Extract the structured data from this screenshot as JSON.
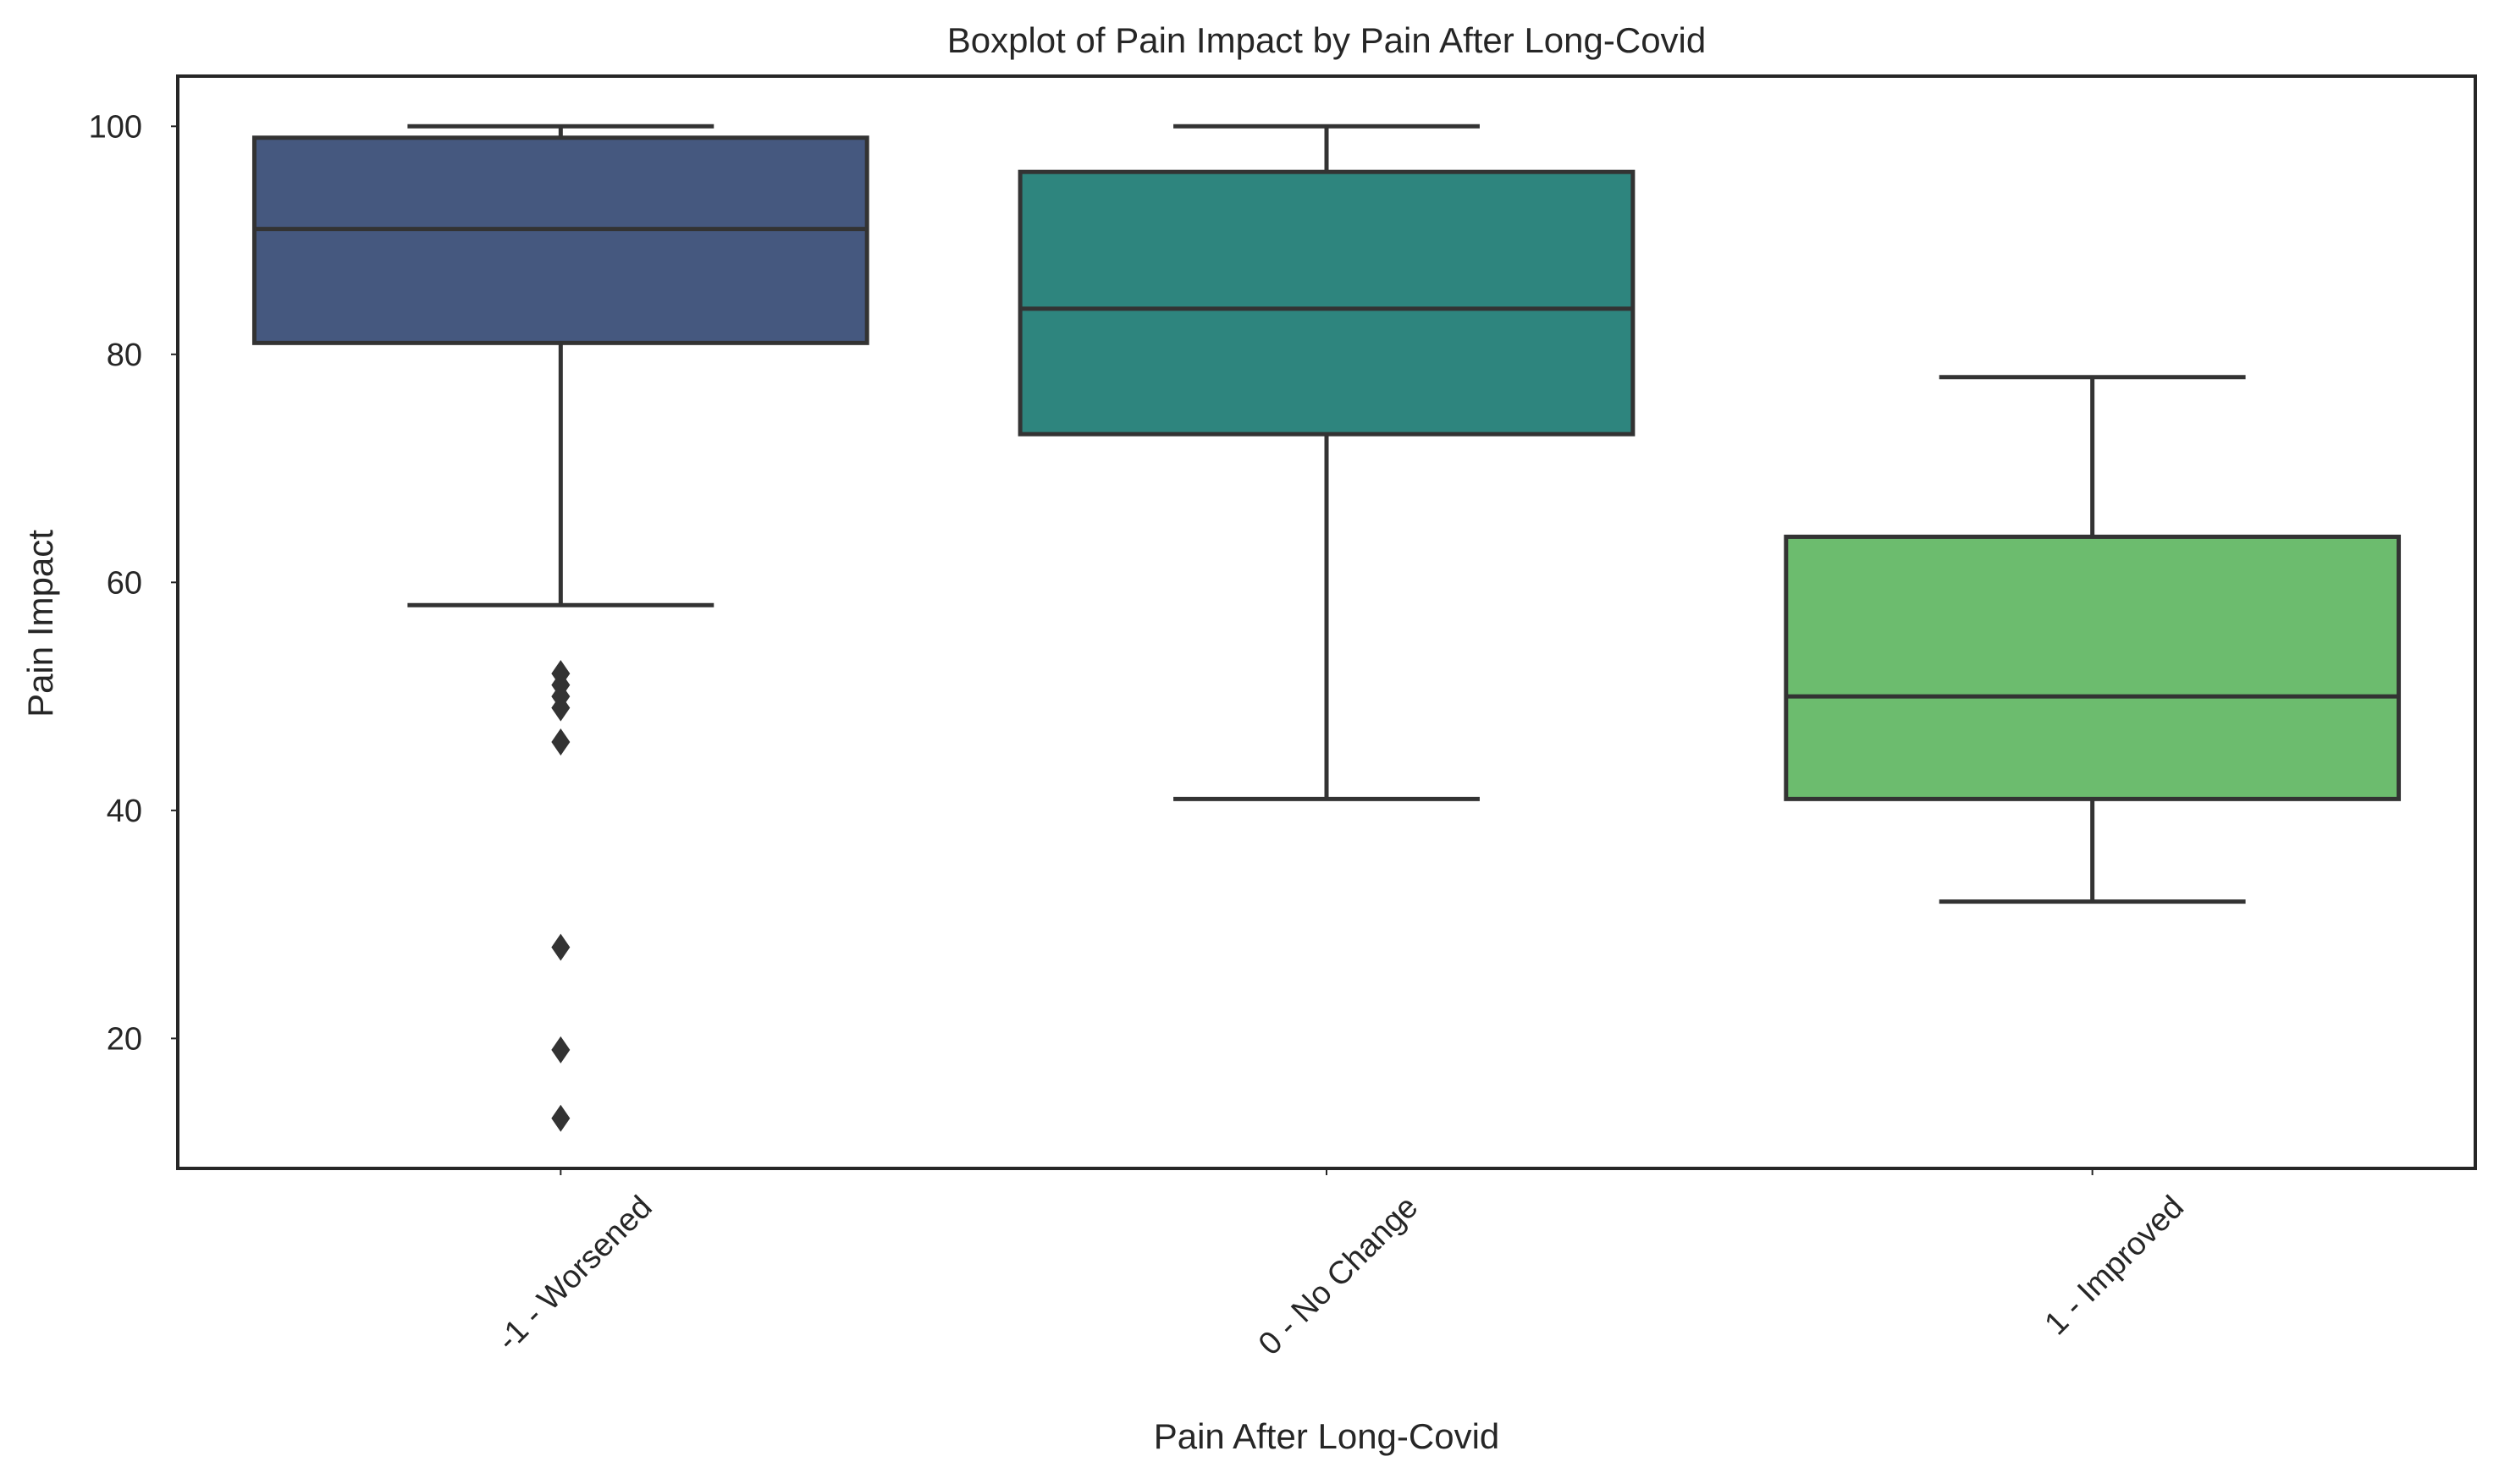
{
  "chart_data": {
    "type": "box",
    "title": "Boxplot of Pain Impact by Pain After Long-Covid",
    "xlabel": "Pain After Long-Covid",
    "ylabel": "Pain Impact",
    "ylim": [
      8.6,
      104.4
    ],
    "yticks": [
      20,
      40,
      60,
      80,
      100
    ],
    "grid": false,
    "categories": [
      "-1 - Worsened",
      "0 - No Change",
      "1 - Improved"
    ],
    "boxes": [
      {
        "category": "-1 - Worsened",
        "whisker_low": 58,
        "q1": 81,
        "median": 91,
        "q3": 99,
        "whisker_high": 100,
        "outliers": [
          52,
          51,
          50,
          49,
          46,
          28,
          19,
          13
        ],
        "color": "#45587f"
      },
      {
        "category": "0 - No Change",
        "whisker_low": 41,
        "q1": 73,
        "median": 84,
        "q3": 96,
        "whisker_high": 100,
        "outliers": [],
        "color": "#2e857e"
      },
      {
        "category": "1 - Improved",
        "whisker_low": 32,
        "q1": 41,
        "median": 50,
        "q3": 64,
        "whisker_high": 78,
        "outliers": [],
        "color": "#6cbc6e"
      }
    ],
    "line_color": "#333333",
    "frame_color": "#262626"
  }
}
